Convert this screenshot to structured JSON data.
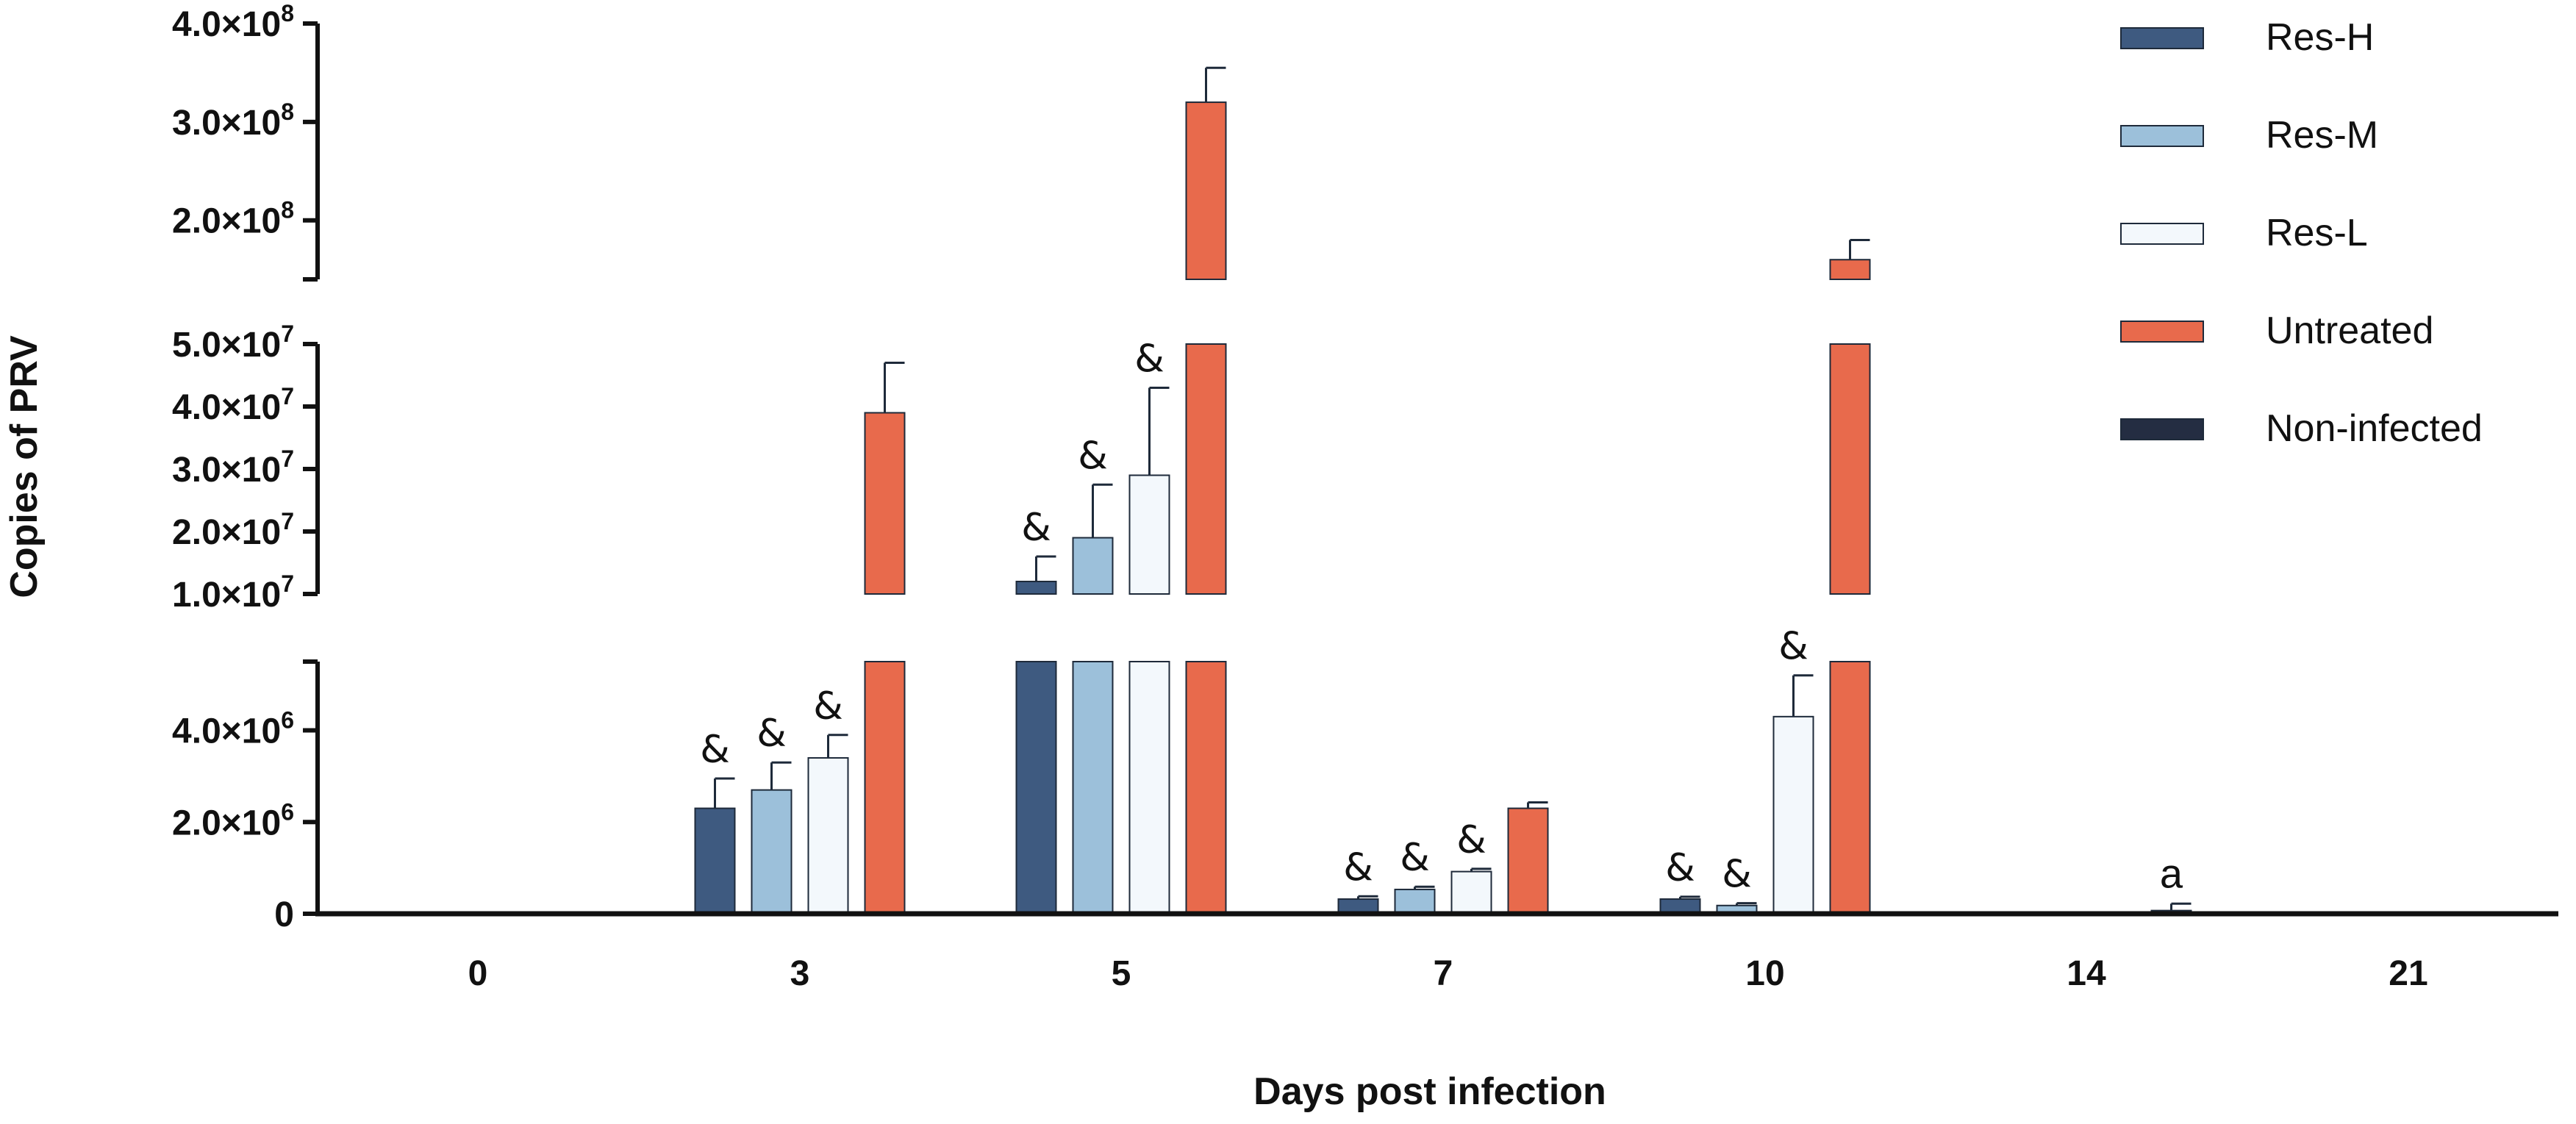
{
  "chart_data": {
    "type": "bar",
    "title": "",
    "xlabel": "Days post infection",
    "ylabel": "Copies of PRV",
    "categories": [
      "0",
      "3",
      "5",
      "7",
      "10",
      "14",
      "21"
    ],
    "axis_breaks": {
      "segments": [
        {
          "range": [
            0,
            5500000
          ],
          "ticks": [
            0,
            2000000,
            4000000
          ],
          "tick_labels": [
            "0",
            "2.0×10",
            "4.0×10"
          ],
          "tick_exps": [
            "",
            "6",
            "6"
          ]
        },
        {
          "range": [
            10000000,
            50000000
          ],
          "ticks": [
            10000000,
            20000000,
            30000000,
            40000000,
            50000000
          ],
          "tick_labels": [
            "1.0×10",
            "2.0×10",
            "3.0×10",
            "4.0×10",
            "5.0×10"
          ],
          "tick_exps": [
            "7",
            "7",
            "7",
            "7",
            "7"
          ]
        },
        {
          "range": [
            140000000,
            400000000
          ],
          "ticks": [
            200000000,
            300000000,
            400000000
          ],
          "tick_labels": [
            "2.0×10",
            "3.0×10",
            "4.0×10"
          ],
          "tick_exps": [
            "8",
            "8",
            "8"
          ]
        }
      ]
    },
    "series": [
      {
        "name": "Res-H",
        "color": "#3e5a80",
        "values": [
          0,
          2300000,
          12000000,
          320000,
          320000,
          0,
          0
        ],
        "errors": [
          0,
          650000,
          4000000,
          60000,
          50000,
          0,
          0
        ],
        "annotations": [
          "",
          "&",
          "&",
          "&",
          "&",
          "",
          ""
        ]
      },
      {
        "name": "Res-M",
        "color": "#9cc0da",
        "values": [
          0,
          2700000,
          19000000,
          530000,
          180000,
          0,
          0
        ],
        "errors": [
          0,
          600000,
          8500000,
          60000,
          50000,
          0,
          0
        ],
        "annotations": [
          "",
          "&",
          "&",
          "&",
          "&",
          "",
          ""
        ]
      },
      {
        "name": "Res-L",
        "color": "#f3f8fc",
        "values": [
          0,
          3400000,
          29000000,
          920000,
          4300000,
          0,
          0
        ],
        "errors": [
          0,
          500000,
          14000000,
          60000,
          900000,
          0,
          0
        ],
        "annotations": [
          "",
          "&",
          "&",
          "&",
          "&",
          "",
          ""
        ]
      },
      {
        "name": "Untreated",
        "color": "#e86a4c",
        "values": [
          0,
          39000000,
          320000000,
          2300000,
          160000000,
          70000,
          0
        ],
        "errors": [
          0,
          8000000,
          35000000,
          130000,
          20000000,
          150000,
          0
        ],
        "annotations": [
          "",
          "",
          "",
          "",
          "",
          "a",
          ""
        ]
      },
      {
        "name": "Non-infected",
        "color": "#242d42",
        "values": [
          0,
          0,
          0,
          0,
          0,
          0,
          0
        ],
        "errors": [
          0,
          0,
          0,
          0,
          0,
          0,
          0
        ],
        "annotations": [
          "",
          "",
          "",
          "",
          "",
          "",
          ""
        ]
      }
    ],
    "legend_position": "top-right",
    "grid": false
  }
}
